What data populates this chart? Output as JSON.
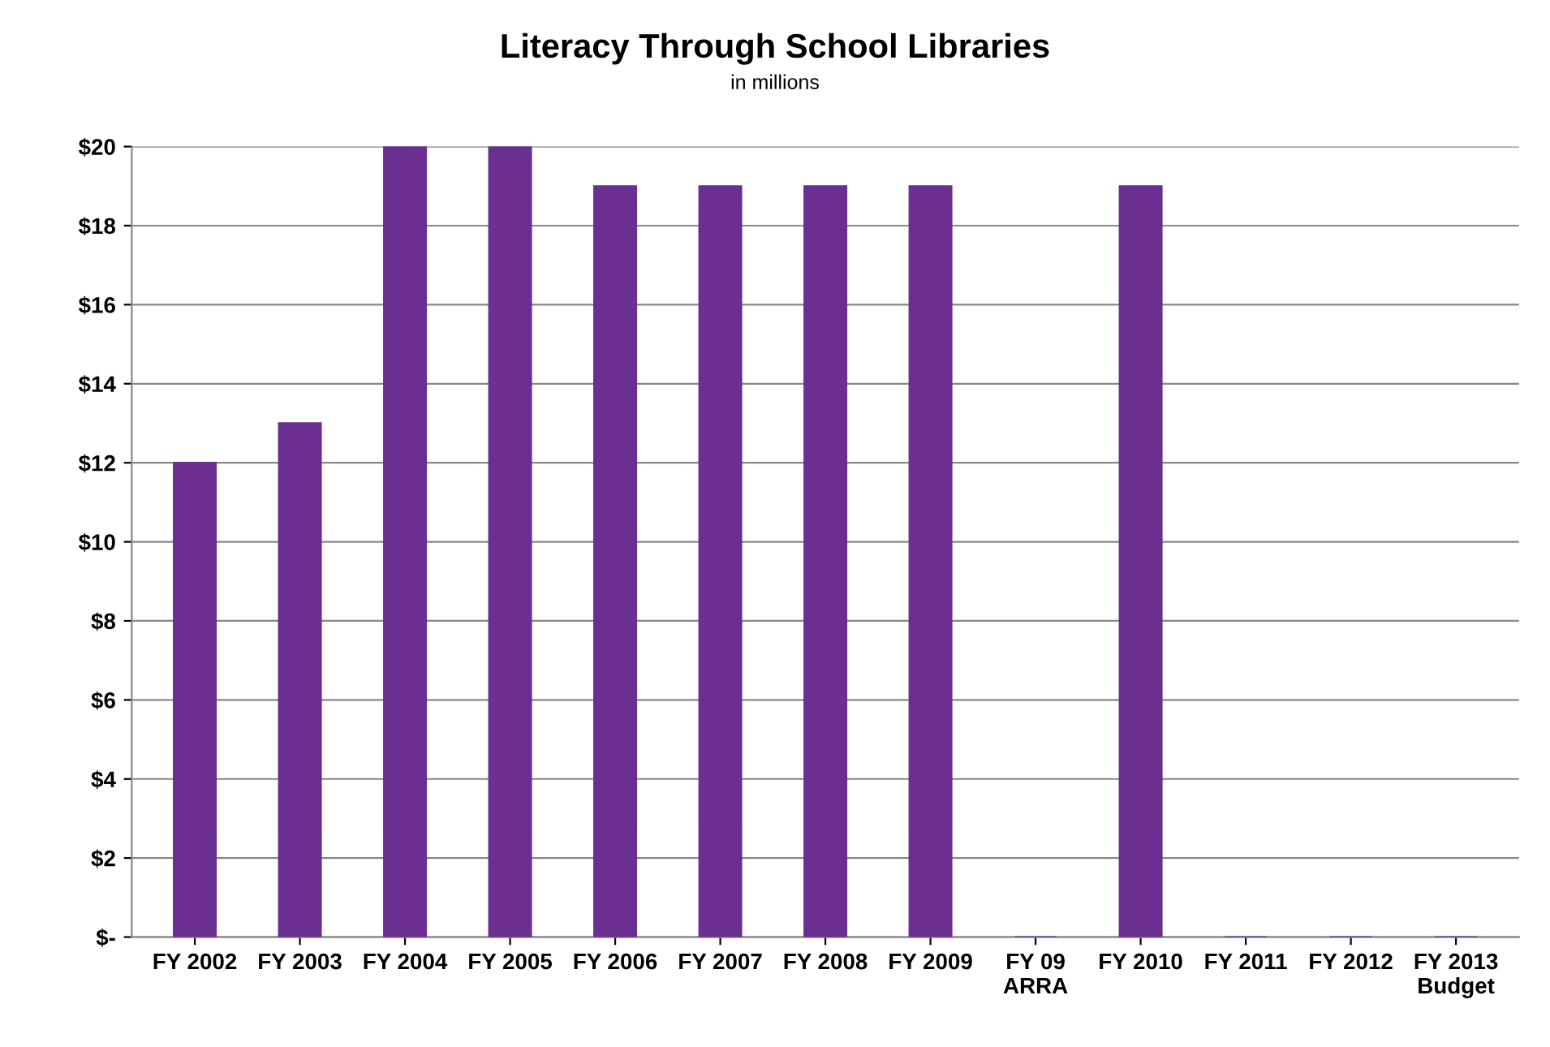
{
  "chart_data": {
    "type": "bar",
    "title": "Literacy Through School Libraries",
    "subtitle": "in millions",
    "categories": [
      "FY 2002",
      "FY 2003",
      "FY 2004",
      "FY 2005",
      "FY 2006",
      "FY 2007",
      "FY 2008",
      "FY 2009",
      "FY 09\nARRA",
      "FY 2010",
      "FY 2011",
      "FY 2012",
      "FY 2013\nBudget"
    ],
    "values": [
      12,
      13,
      20,
      20,
      19,
      19,
      19,
      19,
      0,
      19,
      0,
      0,
      0
    ],
    "color": "#6a2f91",
    "ylim": [
      0,
      20
    ],
    "yticks": [
      {
        "value": 0,
        "label": "$-"
      },
      {
        "value": 2,
        "label": "$2"
      },
      {
        "value": 4,
        "label": "$4"
      },
      {
        "value": 6,
        "label": "$6"
      },
      {
        "value": 8,
        "label": "$8"
      },
      {
        "value": 10,
        "label": "$10"
      },
      {
        "value": 12,
        "label": "$12"
      },
      {
        "value": 14,
        "label": "$14"
      },
      {
        "value": 16,
        "label": "$16"
      },
      {
        "value": 18,
        "label": "$18"
      },
      {
        "value": 20,
        "label": "$20"
      }
    ],
    "grid": "y",
    "legend": false
  }
}
